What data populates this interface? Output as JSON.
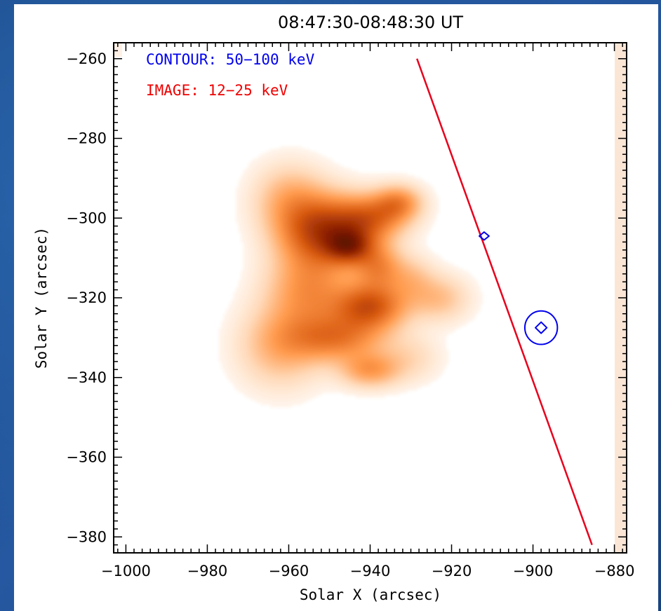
{
  "chart_data": {
    "type": "heatmap",
    "title": "08:47:30-08:48:30 UT",
    "xlabel": "Solar X (arcsec)",
    "ylabel": "Solar Y (arcsec)",
    "xlim": [
      -1003,
      -877
    ],
    "ylim": [
      -384,
      -256
    ],
    "x_ticks": [
      -1000,
      -980,
      -960,
      -940,
      -920,
      -900,
      -880
    ],
    "y_ticks": [
      -260,
      -280,
      -300,
      -320,
      -340,
      -360,
      -380
    ],
    "x_tick_labels": [
      "−1000",
      "−980",
      "−960",
      "−940",
      "−920",
      "−900",
      "−880"
    ],
    "y_tick_labels": [
      "−260",
      "−280",
      "−300",
      "−320",
      "−340",
      "−360",
      "−380"
    ],
    "minor_tick_step": 2,
    "grid": false,
    "legend": [
      {
        "label": "CONTOUR: 50−100 keV",
        "color": "#0000ee"
      },
      {
        "label": "IMAGE: 12−25 keV",
        "color": "#ee0000"
      }
    ],
    "legend_position": "top-left",
    "image_colormap": [
      "#ffffff",
      "#ffd9b8",
      "#ff9a4d",
      "#d85a10",
      "#8a1e00",
      "#3a0800"
    ],
    "image_sources": [
      {
        "x": -952,
        "y": -303,
        "amp": 0.55,
        "sx": 7,
        "sy": 6
      },
      {
        "x": -945,
        "y": -307,
        "amp": 0.45,
        "sx": 4,
        "sy": 3
      },
      {
        "x": -940,
        "y": -300,
        "amp": 0.4,
        "sx": 6,
        "sy": 4
      },
      {
        "x": -933,
        "y": -296,
        "amp": 0.3,
        "sx": 4,
        "sy": 3
      },
      {
        "x": -938,
        "y": -312,
        "amp": 0.3,
        "sx": 4,
        "sy": 4
      },
      {
        "x": -940,
        "y": -322,
        "amp": 0.5,
        "sx": 6,
        "sy": 4
      },
      {
        "x": -955,
        "y": -318,
        "amp": 0.3,
        "sx": 7,
        "sy": 7
      },
      {
        "x": -948,
        "y": -330,
        "amp": 0.35,
        "sx": 8,
        "sy": 4
      },
      {
        "x": -940,
        "y": -338,
        "amp": 0.28,
        "sx": 5,
        "sy": 3
      },
      {
        "x": -962,
        "y": -332,
        "amp": 0.22,
        "sx": 7,
        "sy": 7
      },
      {
        "x": -923,
        "y": -320,
        "amp": 0.18,
        "sx": 5,
        "sy": 4
      },
      {
        "x": -930,
        "y": -315,
        "amp": 0.15,
        "sx": 4,
        "sy": 4
      },
      {
        "x": -930,
        "y": -335,
        "amp": 0.1,
        "sx": 5,
        "sy": 4
      },
      {
        "x": -960,
        "y": -295,
        "amp": 0.2,
        "sx": 6,
        "sy": 6
      }
    ],
    "contours": [
      {
        "shape": "diamond",
        "x": -912,
        "y": -304.5,
        "rx": 1.2,
        "ry": 1.0
      },
      {
        "shape": "diamond",
        "x": -898,
        "y": -327.5,
        "rx": 1.4,
        "ry": 1.4
      },
      {
        "shape": "circle",
        "x": -898,
        "y": -327.5,
        "rx": 4.0,
        "ry": 4.2
      }
    ],
    "limb_line": [
      [
        -928.5,
        -260
      ],
      [
        -885.5,
        -382
      ]
    ],
    "limb_color": "#e8001c",
    "contour_color": "#0000ee"
  }
}
